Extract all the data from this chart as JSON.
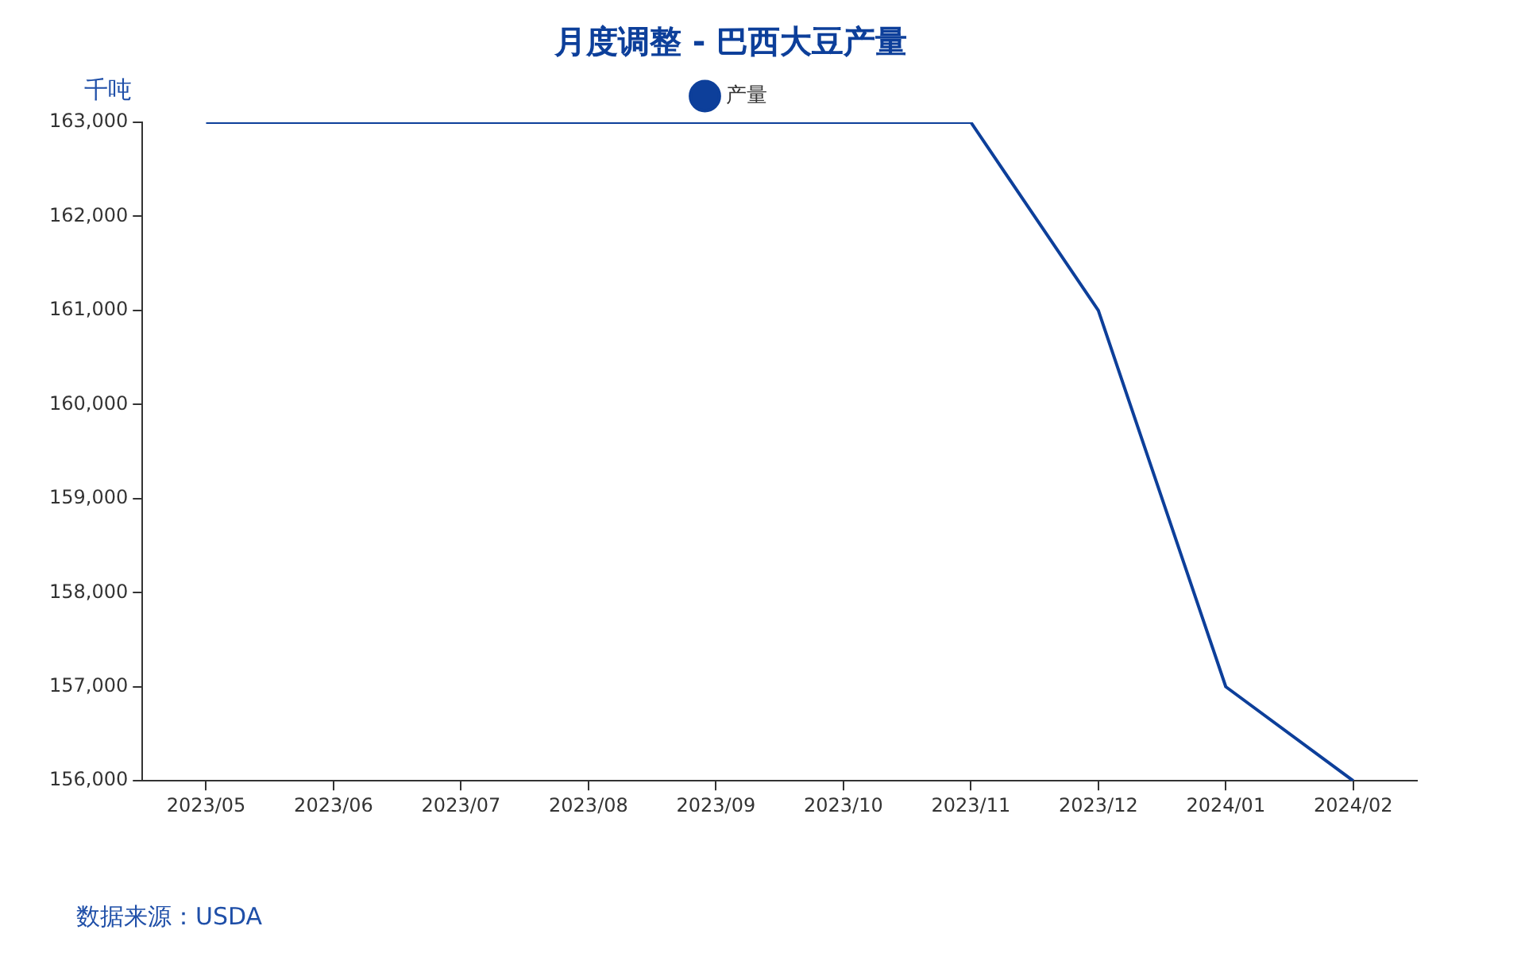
{
  "chart_data": {
    "type": "line",
    "title": "月度调整 - 巴西大豆产量",
    "ylabel": "千吨",
    "categories": [
      "2023/05",
      "2023/06",
      "2023/07",
      "2023/08",
      "2023/09",
      "2023/10",
      "2023/11",
      "2023/12",
      "2024/01",
      "2024/02"
    ],
    "series": [
      {
        "name": "产量",
        "color": "#0d3f9a",
        "values": [
          163000,
          163000,
          163000,
          163000,
          163000,
          163000,
          163000,
          161000,
          157000,
          156000
        ]
      }
    ],
    "ylim": [
      156000,
      163000
    ],
    "yticks": [
      {
        "value": 156000,
        "label": "156,000"
      },
      {
        "value": 157000,
        "label": "157,000"
      },
      {
        "value": 158000,
        "label": "158,000"
      },
      {
        "value": 159000,
        "label": "159,000"
      },
      {
        "value": 160000,
        "label": "160,000"
      },
      {
        "value": 161000,
        "label": "161,000"
      },
      {
        "value": 162000,
        "label": "162,000"
      },
      {
        "value": 163000,
        "label": "163,000"
      }
    ],
    "grid": false,
    "legend": "top",
    "annotations": [
      "数据来源：USDA"
    ]
  }
}
